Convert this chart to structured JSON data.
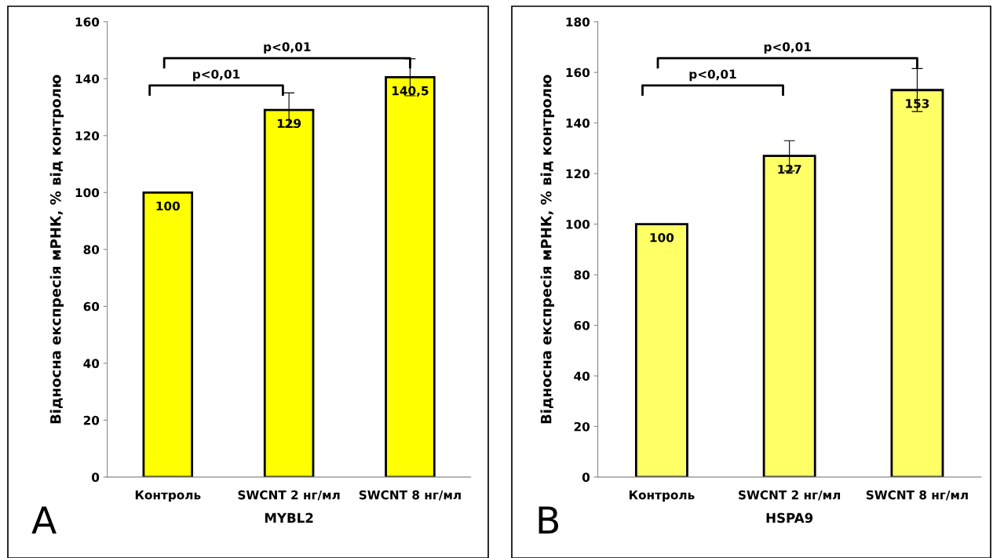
{
  "chart_data": [
    {
      "type": "bar",
      "xlabel": "MYBL2",
      "ylabel": "Відносна експресія мРНК, % від контролю",
      "categories": [
        "Контроль",
        "SWCNT 2 нг/мл",
        "SWCNT 8 нг/мл"
      ],
      "values": [
        100,
        129,
        140.5
      ],
      "errors": [
        null,
        6,
        6.5
      ],
      "color": "#ffff00",
      "ylim": [
        0,
        160
      ],
      "yticks": [
        0,
        20,
        40,
        60,
        80,
        100,
        120,
        140,
        160
      ],
      "data_labels": true,
      "value_labels": [
        "100",
        "129",
        "140,5"
      ],
      "grid": false,
      "legend": false,
      "annotations": [
        "p<0,01",
        "p<0,01",
        "A"
      ]
    },
    {
      "type": "bar",
      "xlabel": "HSPA9",
      "ylabel": "Відносна експресія мРНК, % від контролю",
      "categories": [
        "Контроль",
        "SWCNT 2 нг/мл",
        "SWCNT 8 нг/мл"
      ],
      "values": [
        100,
        127,
        153
      ],
      "errors": [
        null,
        6,
        8.5
      ],
      "color": "#ffff66",
      "ylim": [
        0,
        180
      ],
      "yticks": [
        0,
        20,
        40,
        60,
        80,
        100,
        120,
        140,
        160,
        180
      ],
      "data_labels": true,
      "value_labels": [
        "100",
        "127",
        "153"
      ],
      "grid": false,
      "legend": false,
      "annotations": [
        "p<0,01",
        "p<0,01",
        "B"
      ]
    }
  ]
}
